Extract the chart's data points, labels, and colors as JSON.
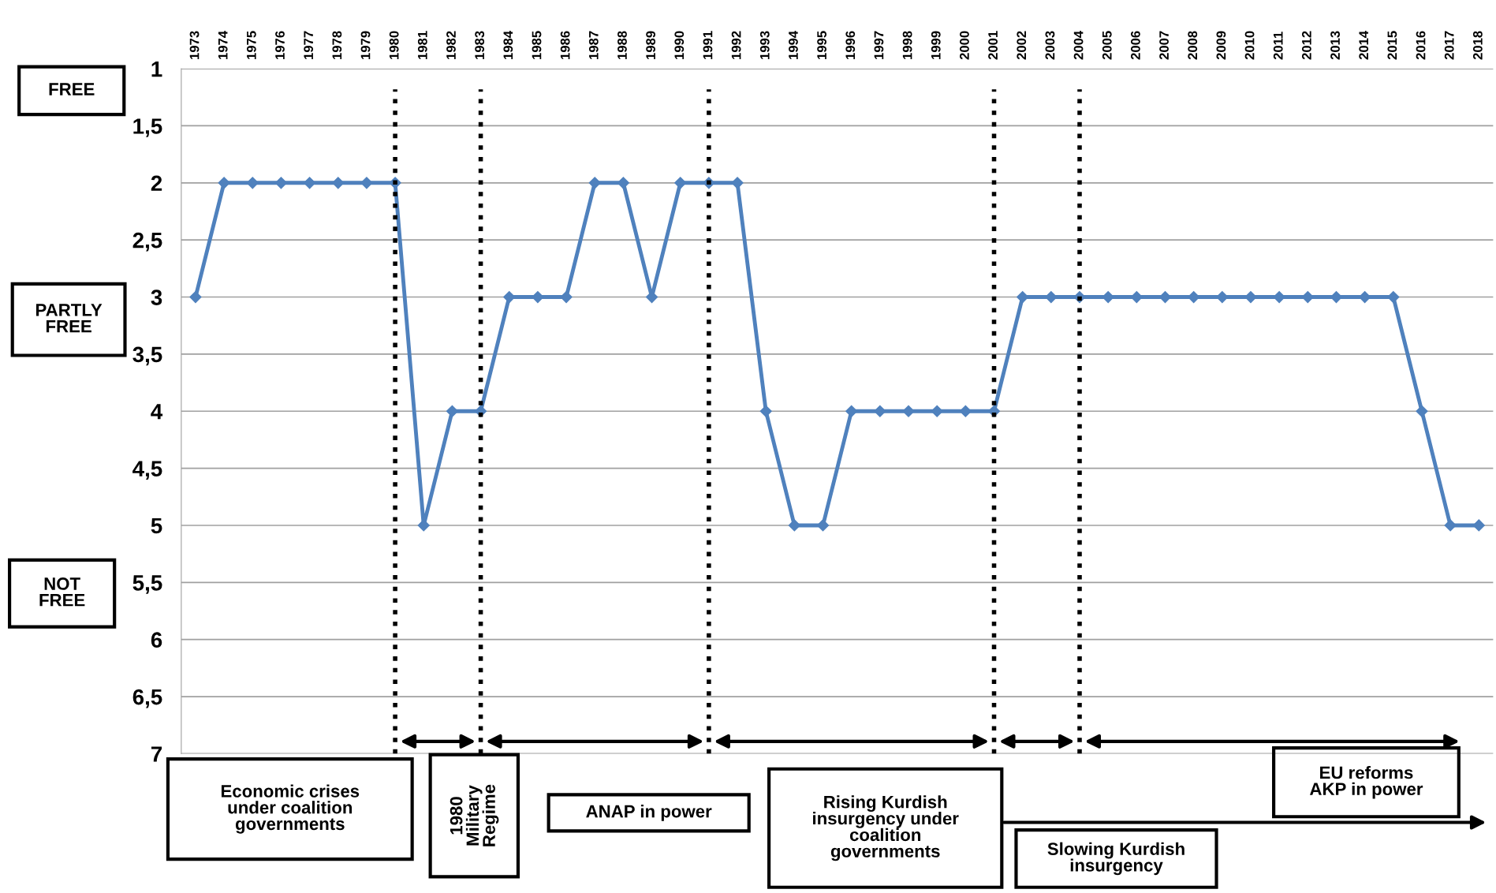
{
  "chart_data": {
    "type": "line",
    "categories": [
      "1973",
      "1974",
      "1975",
      "1976",
      "1977",
      "1978",
      "1979",
      "1980",
      "1981",
      "1982",
      "1983",
      "1984",
      "1985",
      "1986",
      "1987",
      "1988",
      "1989",
      "1990",
      "1991",
      "1992",
      "1993",
      "1994",
      "1995",
      "1996",
      "1997",
      "1998",
      "1999",
      "2000",
      "2001",
      "2002",
      "2003",
      "2004",
      "2005",
      "2006",
      "2007",
      "2008",
      "2009",
      "2010",
      "2011",
      "2012",
      "2013",
      "2014",
      "2015",
      "2016",
      "2017",
      "2018"
    ],
    "series": [
      {
        "color": "#4f81bd",
        "values": [
          3,
          2,
          2,
          2,
          2,
          2,
          2,
          2,
          5,
          4,
          4,
          3,
          3,
          3,
          2,
          2,
          3,
          2,
          2,
          2,
          4,
          5,
          5,
          4,
          4,
          4,
          4,
          4,
          4,
          3,
          3,
          3,
          3,
          3,
          3,
          3,
          3,
          3,
          3,
          3,
          3,
          3,
          3,
          4,
          5,
          5
        ]
      }
    ],
    "ylim": [
      7,
      1
    ],
    "yticks": [
      1,
      {
        "value": 1.5,
        "label": "1,5"
      },
      2,
      {
        "value": 2.5,
        "label": "2,5"
      },
      3,
      {
        "value": 3.5,
        "label": "3,5"
      },
      4,
      {
        "value": 4.5,
        "label": "4,5"
      },
      5,
      {
        "value": 5.5,
        "label": "5,5"
      },
      6,
      {
        "value": 6.5,
        "label": "6,5"
      },
      7
    ],
    "grid": "y",
    "marker": "diamond",
    "line_style": "solid",
    "ref_lines": [
      {
        "axis": "x",
        "value": "1980",
        "color": "#000000",
        "line_style": "dotted"
      },
      {
        "axis": "x",
        "value": "1983",
        "color": "#000000",
        "line_style": "dotted"
      },
      {
        "axis": "x",
        "value": "1991",
        "color": "#000000",
        "line_style": "dotted"
      },
      {
        "axis": "x",
        "value": "2001",
        "color": "#000000",
        "line_style": "dotted"
      },
      {
        "axis": "x",
        "value": "2004",
        "color": "#000000",
        "line_style": "dotted"
      }
    ],
    "annotations": [
      "FREE",
      "PARTLY\nFREE",
      "NOT\nFREE",
      "Economic crises\nunder coalition\ngovernments",
      "1980\nMilitary\nRegime",
      "ANAP in power",
      "Rising Kurdish\ninsurgency under\ncoalition\ngovernments",
      "Slowing Kurdish\ninsurgency",
      "EU reforms\nAKP in power"
    ]
  }
}
